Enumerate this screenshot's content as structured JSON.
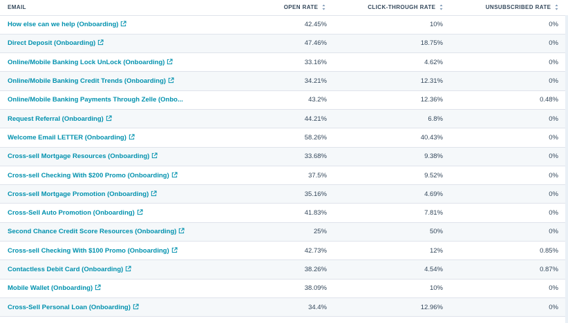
{
  "columns": {
    "email": "EMAIL",
    "open_rate": "OPEN RATE",
    "click_through_rate": "CLICK-THROUGH RATE",
    "unsubscribed_rate": "UNSUBSCRIBED RATE"
  },
  "rows": [
    {
      "email": "How else can we help (Onboarding)",
      "open_rate": "42.45%",
      "ctr": "10%",
      "unsub": "0%"
    },
    {
      "email": "Direct Deposit (Onboarding)",
      "open_rate": "47.46%",
      "ctr": "18.75%",
      "unsub": "0%"
    },
    {
      "email": "Online/Mobile Banking Lock UnLock (Onboarding)",
      "open_rate": "33.16%",
      "ctr": "4.62%",
      "unsub": "0%"
    },
    {
      "email": "Online/Mobile Banking Credit Trends (Onboarding)",
      "open_rate": "34.21%",
      "ctr": "12.31%",
      "unsub": "0%"
    },
    {
      "email": "Online/Mobile Banking Payments Through Zelle (Onbo...",
      "open_rate": "43.2%",
      "ctr": "12.36%",
      "unsub": "0.48%"
    },
    {
      "email": "Request Referral (Onboarding)",
      "open_rate": "44.21%",
      "ctr": "6.8%",
      "unsub": "0%"
    },
    {
      "email": "Welcome Email LETTER (Onboarding)",
      "open_rate": "58.26%",
      "ctr": "40.43%",
      "unsub": "0%"
    },
    {
      "email": "Cross-sell Mortgage Resources (Onboarding)",
      "open_rate": "33.68%",
      "ctr": "9.38%",
      "unsub": "0%"
    },
    {
      "email": "Cross-sell Checking With $200 Promo (Onboarding)",
      "open_rate": "37.5%",
      "ctr": "9.52%",
      "unsub": "0%"
    },
    {
      "email": "Cross-sell Mortgage Promotion (Onboarding)",
      "open_rate": "35.16%",
      "ctr": "4.69%",
      "unsub": "0%"
    },
    {
      "email": "Cross-Sell Auto Promotion (Onboarding)",
      "open_rate": "41.83%",
      "ctr": "7.81%",
      "unsub": "0%"
    },
    {
      "email": "Second Chance Credit Score Resources (Onboarding)",
      "open_rate": "25%",
      "ctr": "50%",
      "unsub": "0%"
    },
    {
      "email": "Cross-sell Checking With $100 Promo (Onboarding)",
      "open_rate": "42.73%",
      "ctr": "12%",
      "unsub": "0.85%"
    },
    {
      "email": "Contactless Debit Card (Onboarding)",
      "open_rate": "38.26%",
      "ctr": "4.54%",
      "unsub": "0.87%"
    },
    {
      "email": "Mobile Wallet (Onboarding)",
      "open_rate": "38.09%",
      "ctr": "10%",
      "unsub": "0%"
    },
    {
      "email": "Cross-Sell Personal Loan (Onboarding)",
      "open_rate": "34.4%",
      "ctr": "12.96%",
      "unsub": "0%"
    }
  ],
  "icons": {
    "row_link": "external-link-icon",
    "header_sort": "sort-arrows-icon"
  },
  "colors": {
    "link": "#0091ae",
    "text": "#33475b",
    "stripe": "#f5f8fa",
    "border": "#dfe3eb"
  }
}
